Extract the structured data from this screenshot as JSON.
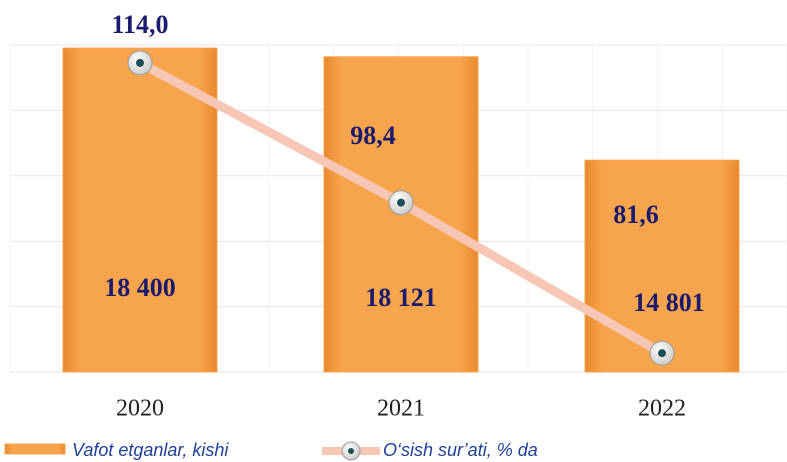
{
  "chart_data": {
    "type": "bar-line",
    "categories": [
      "2020",
      "2021",
      "2022"
    ],
    "series": [
      {
        "name": "Vafot etganlar,  kishi",
        "type": "bar",
        "color": "#f7a14a",
        "values": [
          18400,
          18121,
          14801
        ],
        "value_labels": [
          "18 400",
          "18 121",
          "14 801"
        ]
      },
      {
        "name": "O‘sish sur’ati, % da",
        "type": "line",
        "axis": "y2",
        "color": "#f7c6b4",
        "values": [
          114.0,
          98.4,
          81.6
        ],
        "value_labels": [
          "114,0",
          "98,4",
          "81,6"
        ]
      }
    ],
    "ylim": [
      8000,
      18500
    ],
    "y2lim": [
      79.5,
      116
    ],
    "grid": true,
    "legend": "bottom"
  }
}
